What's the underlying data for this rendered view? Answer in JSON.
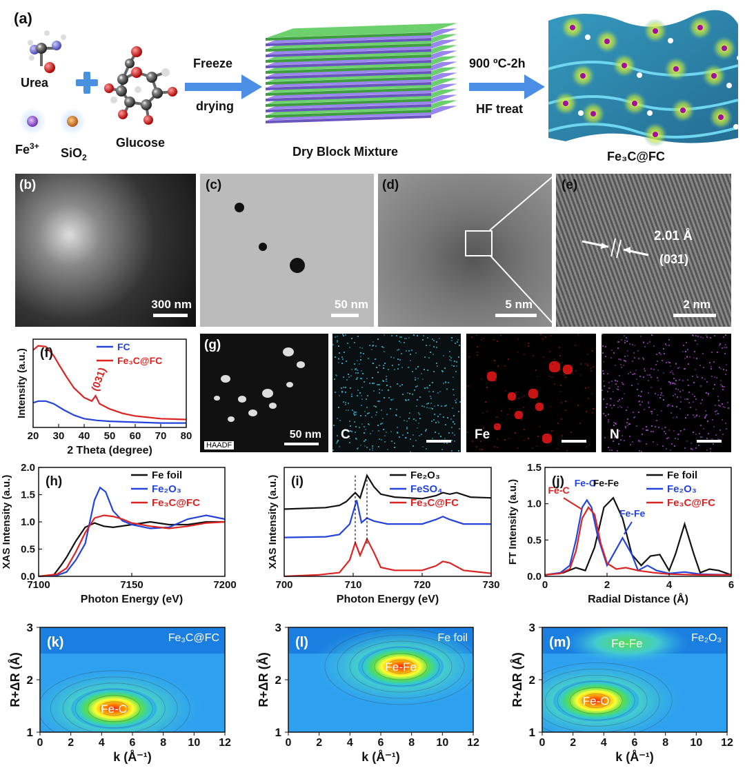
{
  "panel_a": {
    "label": "(a)",
    "urea": "Urea",
    "glucose": "Glucose",
    "fe": "Fe",
    "fe_sup": "3+",
    "sio2": "SiO",
    "sio2_sub": "2",
    "step1_line1": "Freeze",
    "step1_line2": "drying",
    "mixture": "Dry Block Mixture",
    "step2_line1": "900 ºC-2h",
    "step2_line2": "HF treat",
    "product": "Fe₃C@FC"
  },
  "micro": {
    "b": {
      "label": "(b)",
      "scale": "300 nm"
    },
    "c": {
      "label": "(c)",
      "scale": "50 nm"
    },
    "d": {
      "label": "(d)",
      "scale": "5 nm"
    },
    "e": {
      "label": "(e)",
      "scale": "2 nm",
      "spacing": "2.01 Å",
      "plane": "(031)"
    }
  },
  "eds": {
    "label": "(g)",
    "haadf": "HAADF",
    "scale": "50 nm",
    "c": "C",
    "fe": "Fe",
    "n": "N"
  },
  "colors": {
    "black": "#111111",
    "blue": "#2244dd",
    "red": "#dd2222"
  },
  "chart_data": [
    {
      "id": "f",
      "label": "(f)",
      "type": "line",
      "xlabel": "2 Theta (degree)",
      "ylabel": "Intensity (a.u.)",
      "xlim": [
        20,
        80
      ],
      "xticks": [
        20,
        30,
        40,
        50,
        60,
        70,
        80
      ],
      "annotation": "(031)",
      "series": [
        {
          "name": "FC",
          "color": "#2244dd",
          "x": [
            20,
            22,
            25,
            28,
            32,
            36,
            40,
            45,
            50,
            60,
            70,
            80
          ],
          "y": [
            0.28,
            0.3,
            0.3,
            0.27,
            0.2,
            0.14,
            0.1,
            0.08,
            0.07,
            0.06,
            0.05,
            0.05
          ]
        },
        {
          "name": "Fe₃C@FC",
          "color": "#dd2222",
          "x": [
            20,
            22,
            25,
            28,
            30,
            33,
            36,
            40,
            43,
            44.5,
            46,
            50,
            55,
            60,
            70,
            80
          ],
          "y": [
            0.88,
            0.93,
            0.92,
            0.82,
            0.72,
            0.58,
            0.45,
            0.34,
            0.3,
            0.36,
            0.27,
            0.21,
            0.16,
            0.13,
            0.1,
            0.09
          ]
        }
      ]
    },
    {
      "id": "h",
      "label": "(h)",
      "type": "line",
      "xlabel": "Photon Energy (eV)",
      "ylabel": "XAS Intensity (a.u.)",
      "xlim": [
        7100,
        7200
      ],
      "ylim": [
        0,
        2.0
      ],
      "xticks": [
        7100,
        7150,
        7200
      ],
      "yticks": [
        0.0,
        0.5,
        1.0,
        1.5,
        2.0
      ],
      "series": [
        {
          "name": "Fe foil",
          "color": "#111111",
          "x": [
            7100,
            7108,
            7112,
            7115,
            7120,
            7125,
            7130,
            7135,
            7140,
            7150,
            7160,
            7170,
            7180,
            7190,
            7200
          ],
          "y": [
            0,
            0.02,
            0.2,
            0.35,
            0.65,
            0.9,
            0.98,
            0.92,
            0.9,
            0.95,
            1.0,
            0.95,
            0.95,
            1.0,
            1.0
          ]
        },
        {
          "name": "Fe₂O₃",
          "color": "#2244dd",
          "x": [
            7100,
            7110,
            7115,
            7120,
            7125,
            7130,
            7133,
            7136,
            7140,
            7145,
            7150,
            7160,
            7170,
            7180,
            7190,
            7200
          ],
          "y": [
            0,
            0.02,
            0.08,
            0.3,
            0.6,
            1.4,
            1.63,
            1.55,
            1.2,
            1.02,
            0.95,
            0.88,
            0.9,
            1.05,
            1.12,
            1.05
          ]
        },
        {
          "name": "Fe₃C@FC",
          "color": "#dd2222",
          "x": [
            7100,
            7110,
            7115,
            7120,
            7125,
            7130,
            7135,
            7140,
            7145,
            7150,
            7160,
            7170,
            7180,
            7190,
            7200
          ],
          "y": [
            0,
            0.04,
            0.15,
            0.45,
            0.8,
            1.07,
            1.12,
            1.1,
            1.05,
            0.98,
            0.92,
            0.88,
            0.92,
            0.98,
            1.0
          ]
        }
      ]
    },
    {
      "id": "i",
      "label": "(i)",
      "type": "line",
      "xlabel": "Photon Energy (eV)",
      "ylabel": "XAS Intensity (a.u.)",
      "xlim": [
        700,
        730
      ],
      "xticks": [
        700,
        710,
        720,
        730
      ],
      "series": [
        {
          "name": "Fe₂O₃",
          "color": "#111111",
          "x": [
            700,
            706,
            708,
            709,
            710.3,
            711,
            712,
            713,
            714,
            716,
            720,
            722,
            723,
            724,
            725,
            727,
            730
          ],
          "y": [
            0.9,
            0.92,
            0.95,
            1.0,
            1.12,
            1.05,
            1.35,
            1.2,
            1.1,
            1.06,
            1.04,
            1.08,
            1.12,
            1.1,
            1.12,
            1.06,
            1.05
          ]
        },
        {
          "name": "FeSO₄",
          "color": "#2244dd",
          "x": [
            700,
            706,
            708,
            709.5,
            710.5,
            711.2,
            712,
            713,
            715,
            720,
            722,
            723,
            724,
            726,
            730
          ],
          "y": [
            0.52,
            0.53,
            0.56,
            0.7,
            1.02,
            0.72,
            0.78,
            0.74,
            0.7,
            0.7,
            0.76,
            0.8,
            0.76,
            0.7,
            0.7
          ]
        },
        {
          "name": "Fe₃C@FC",
          "color": "#dd2222",
          "x": [
            700,
            705,
            708,
            709.5,
            710.3,
            711,
            712,
            713,
            714,
            716,
            720,
            722,
            723,
            724,
            726,
            728,
            730
          ],
          "y": [
            0.0,
            0.02,
            0.05,
            0.22,
            0.45,
            0.28,
            0.5,
            0.32,
            0.12,
            0.08,
            0.08,
            0.14,
            0.2,
            0.18,
            0.08,
            0.06,
            0.04
          ]
        }
      ]
    },
    {
      "id": "j",
      "label": "(j)",
      "type": "line",
      "xlabel": "Radial Distance (Å)",
      "ylabel": "FT Intensity (a.u.)",
      "xlim": [
        0,
        6
      ],
      "ylim": [
        0,
        1.5
      ],
      "xticks": [
        0,
        2,
        4,
        6
      ],
      "yticks": [
        0.0,
        0.5,
        1.0,
        1.5
      ],
      "annotations": [
        "Fe-C",
        "Fe-O",
        "Fe-Fe",
        "Fe-Fe"
      ],
      "series": [
        {
          "name": "Fe foil",
          "color": "#111111",
          "x": [
            0,
            0.6,
            1.0,
            1.3,
            1.6,
            1.9,
            2.2,
            2.5,
            2.8,
            3.1,
            3.4,
            3.7,
            4.0,
            4.2,
            4.5,
            4.8,
            5.0,
            5.3,
            5.6,
            6.0
          ],
          "y": [
            0.02,
            0.05,
            0.12,
            0.08,
            0.4,
            0.95,
            1.08,
            0.8,
            0.3,
            0.15,
            0.28,
            0.3,
            0.08,
            0.3,
            0.72,
            0.3,
            0.05,
            0.1,
            0.08,
            0.02
          ]
        },
        {
          "name": "Fe₂O₃",
          "color": "#2244dd",
          "x": [
            0,
            0.5,
            0.8,
            1.0,
            1.2,
            1.35,
            1.5,
            1.7,
            2.0,
            2.2,
            2.5,
            2.8,
            3.0,
            3.3,
            3.6,
            4.0,
            4.5,
            5.0,
            6.0
          ],
          "y": [
            0.02,
            0.05,
            0.15,
            0.5,
            0.95,
            1.05,
            0.95,
            0.55,
            0.15,
            0.3,
            0.53,
            0.3,
            0.08,
            0.15,
            0.08,
            0.04,
            0.06,
            0.03,
            0.02
          ]
        },
        {
          "name": "Fe₃C@FC",
          "color": "#dd2222",
          "x": [
            0,
            0.5,
            0.8,
            1.0,
            1.2,
            1.4,
            1.6,
            1.8,
            2.0,
            2.3,
            2.6,
            3.0,
            3.5,
            4.0,
            5.0,
            6.0
          ],
          "y": [
            0.02,
            0.04,
            0.1,
            0.35,
            0.8,
            0.95,
            0.85,
            0.45,
            0.18,
            0.1,
            0.12,
            0.08,
            0.05,
            0.03,
            0.02,
            0.02
          ]
        }
      ]
    },
    {
      "id": "k",
      "label": "(k)",
      "type": "heatmap",
      "tag": "Fe₃C@FC",
      "xlabel": "k (Å⁻¹)",
      "ylabel": "R+ΔR (Å)",
      "xlim": [
        0,
        12
      ],
      "ylim": [
        1,
        3
      ],
      "xticks": [
        0,
        2,
        4,
        6,
        8,
        10,
        12
      ],
      "yticks": [
        1,
        2,
        3
      ],
      "peaks": [
        {
          "k": 4.8,
          "r": 1.45,
          "label": "Fe-C"
        }
      ]
    },
    {
      "id": "l",
      "label": "(l)",
      "type": "heatmap",
      "tag": "Fe foil",
      "xlabel": "k (Å⁻¹)",
      "ylabel": "R+ΔR (Å)",
      "xlim": [
        0,
        12
      ],
      "ylim": [
        1,
        3
      ],
      "xticks": [
        0,
        2,
        4,
        6,
        8,
        10,
        12
      ],
      "yticks": [
        1,
        2,
        3
      ],
      "peaks": [
        {
          "k": 7.3,
          "r": 2.25,
          "label": "Fe-Fe"
        }
      ]
    },
    {
      "id": "m",
      "label": "(m)",
      "type": "heatmap",
      "tag": "Fe₂O₃",
      "xlabel": "k (Å⁻¹)",
      "ylabel": "R+ΔR (Å)",
      "xlim": [
        0,
        12
      ],
      "ylim": [
        1,
        3
      ],
      "xticks": [
        0,
        2,
        4,
        6,
        8,
        10,
        12
      ],
      "yticks": [
        1,
        2,
        3
      ],
      "peaks": [
        {
          "k": 3.5,
          "r": 1.6,
          "label": "Fe-O"
        },
        {
          "k": 5.5,
          "r": 2.7,
          "label": "Fe-Fe"
        }
      ]
    }
  ]
}
